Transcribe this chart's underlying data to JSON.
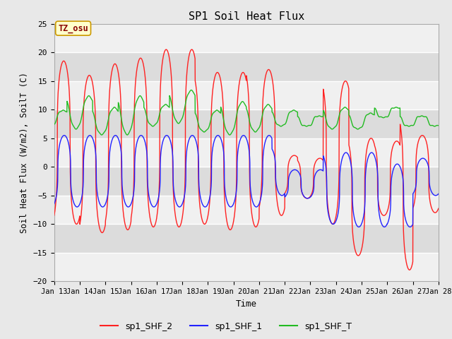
{
  "title": "SP1 Soil Heat Flux",
  "xlabel": "Time",
  "ylabel": "Soil Heat Flux (W/m2), SoilT (C)",
  "ylim": [
    -20,
    25
  ],
  "xlim_days": [
    0,
    15
  ],
  "x_tick_labels": [
    "Jan 13",
    "Jan 14",
    "Jan 15",
    "Jan 16",
    "Jan 17",
    "Jan 18",
    "Jan 19",
    "Jan 20",
    "Jan 21",
    "Jan 22",
    "Jan 23",
    "Jan 24",
    "Jan 25",
    "Jan 26",
    "Jan 27",
    "Jan 28"
  ],
  "line_colors": [
    "#ff2222",
    "#2222ff",
    "#22bb22"
  ],
  "line_labels": [
    "sp1_SHF_2",
    "sp1_SHF_1",
    "sp1_SHF_T"
  ],
  "tz_label": "TZ_osu",
  "tz_bg": "#ffffcc",
  "tz_border": "#cc9900",
  "tz_text_color": "#880000",
  "band_colors_light": "#f0f0f0",
  "band_colors_dark": "#dcdcdc",
  "fig_bg": "#e8e8e8"
}
